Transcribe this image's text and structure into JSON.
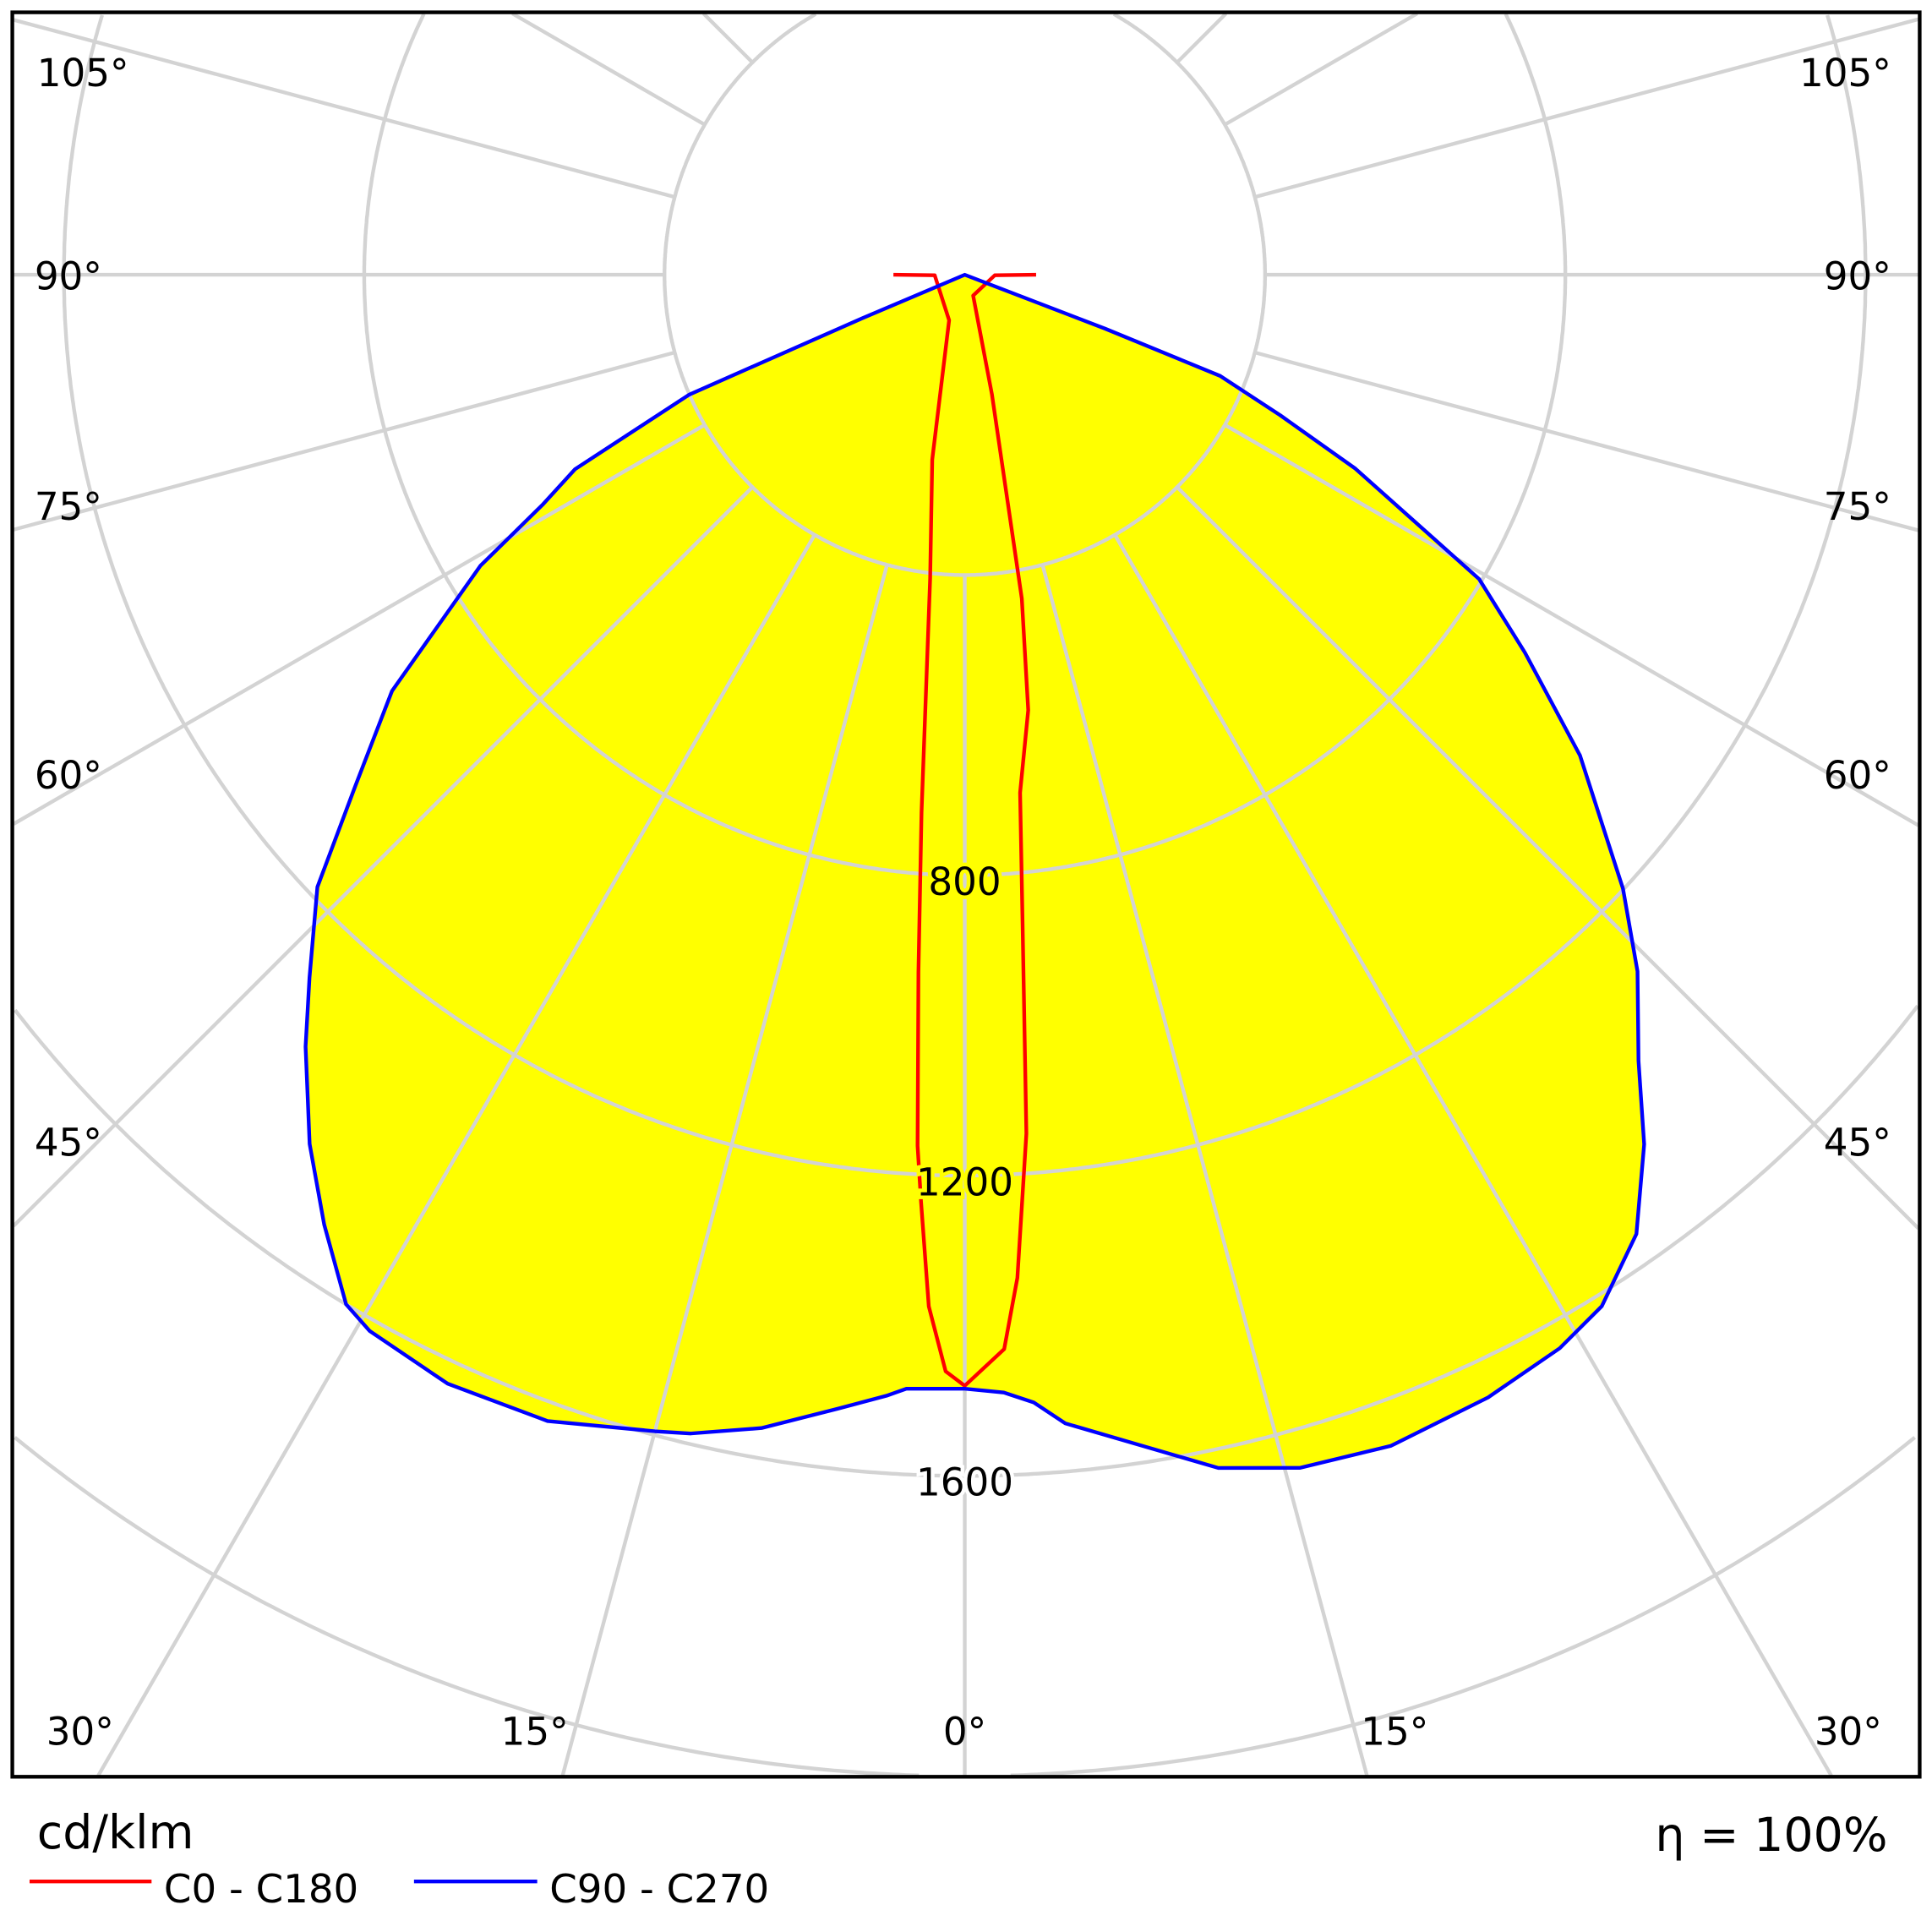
{
  "chart_data": {
    "type": "polar",
    "title": "",
    "unit_label": "cd/klm",
    "efficiency_label": "η = 100%",
    "radial_ticks": [
      400,
      800,
      1200,
      1600,
      2000,
      2400
    ],
    "radial_tick_labels": [
      "800",
      "1200",
      "1600"
    ],
    "radial_labeled_values": [
      800,
      1200,
      1600
    ],
    "angle_ticks": [
      0,
      15,
      30,
      45,
      60,
      75,
      90,
      105
    ],
    "angle_tick_labels": [
      "0°",
      "15°",
      "30°",
      "45°",
      "60°",
      "75°",
      "90°",
      "105°"
    ],
    "grid": true,
    "legend_position": "bottom-left",
    "series": [
      {
        "name": "C0 - C180",
        "color": "#ff0000",
        "fill": "none",
        "points": [
          [
            -90,
            95
          ],
          [
            -89,
            40
          ],
          [
            -19,
            64
          ],
          [
            -10,
            250
          ],
          [
            -6.5,
            407
          ],
          [
            -4.6,
            719
          ],
          [
            -3.8,
            931
          ],
          [
            -3.1,
            1162
          ],
          [
            -2.7,
            1236
          ],
          [
            -2,
            1375
          ],
          [
            -1,
            1461
          ],
          [
            0,
            1480
          ],
          [
            2.1,
            1432
          ],
          [
            3,
            1338
          ],
          [
            4.1,
            1147
          ],
          [
            5.1,
            866
          ],
          [
            6.1,
            694
          ],
          [
            8.3,
            586
          ],
          [
            10,
            438
          ],
          [
            12.8,
            163
          ],
          [
            22,
            30
          ],
          [
            89,
            40
          ],
          [
            90,
            95
          ]
        ]
      },
      {
        "name": "C90 - C270",
        "color": "#0000ff",
        "fill": "#ffff00",
        "points": [
          [
            -70,
            0
          ],
          [
            -67,
            150
          ],
          [
            -66.5,
            400
          ],
          [
            -63.5,
            580
          ],
          [
            -61.4,
            641
          ],
          [
            -59,
            753
          ],
          [
            -54,
            943
          ],
          [
            -50,
            1060
          ],
          [
            -46.6,
            1187
          ],
          [
            -43,
            1280
          ],
          [
            -40.5,
            1352
          ],
          [
            -37,
            1450
          ],
          [
            -34,
            1526
          ],
          [
            -31,
            1600
          ],
          [
            -29.4,
            1615
          ],
          [
            -25,
            1630
          ],
          [
            -20,
            1625
          ],
          [
            -15,
            1595
          ],
          [
            -13.3,
            1586
          ],
          [
            -10,
            1560
          ],
          [
            -6.4,
            1520
          ],
          [
            -4,
            1497
          ],
          [
            -3,
            1486
          ],
          [
            0,
            1484
          ],
          [
            2,
            1490
          ],
          [
            3.5,
            1505
          ],
          [
            5,
            1536
          ],
          [
            8,
            1570
          ],
          [
            12,
            1625
          ],
          [
            15.7,
            1651
          ],
          [
            20,
            1660
          ],
          [
            25,
            1650
          ],
          [
            29,
            1635
          ],
          [
            31.7,
            1615
          ],
          [
            35,
            1560
          ],
          [
            38,
            1470
          ],
          [
            40.6,
            1379
          ],
          [
            44,
            1290
          ],
          [
            47,
            1199
          ],
          [
            52,
            1040
          ],
          [
            56,
            900
          ],
          [
            59.4,
            796
          ],
          [
            63.6,
            581
          ],
          [
            66,
            460
          ],
          [
            68.4,
            366
          ],
          [
            69,
            200
          ],
          [
            70,
            0
          ]
        ]
      }
    ]
  }
}
